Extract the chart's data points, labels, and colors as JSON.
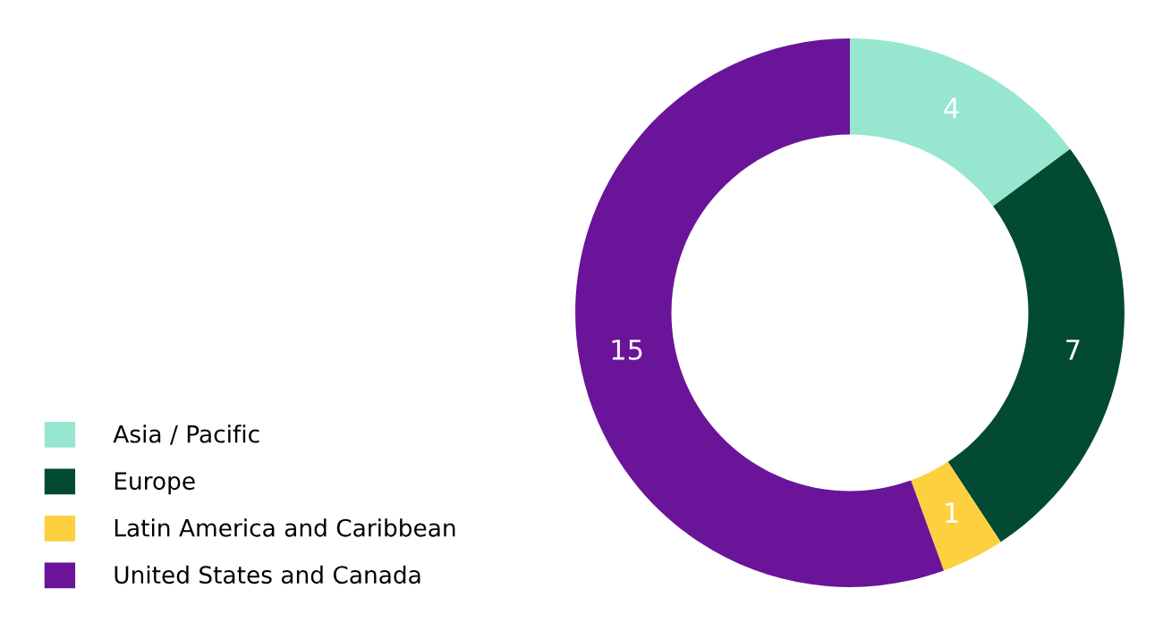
{
  "chart_data": {
    "type": "donut",
    "categories": [
      "Asia / Pacific",
      "Europe",
      "Latin America and Caribbean",
      "United States and Canada"
    ],
    "values": [
      4,
      7,
      1,
      15
    ],
    "colors": [
      "#97e6d0",
      "#034a33",
      "#fdd03f",
      "#6a1499"
    ],
    "data_labels": true,
    "legend": "bottom left"
  }
}
